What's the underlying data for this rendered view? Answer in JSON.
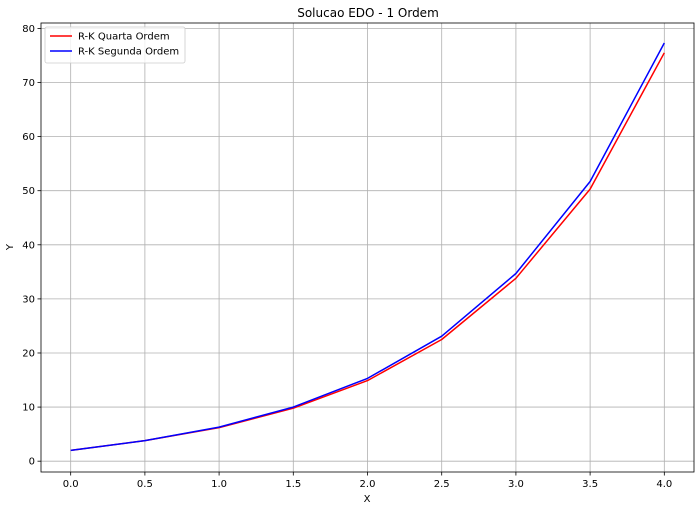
{
  "chart_data": {
    "type": "line",
    "title": "Solucao EDO - 1 Ordem",
    "xlabel": "X",
    "ylabel": "Y",
    "xlim": [
      -0.2,
      4.2
    ],
    "ylim": [
      -2,
      81
    ],
    "xticks": [
      0.0,
      0.5,
      1.0,
      1.5,
      2.0,
      2.5,
      3.0,
      3.5,
      4.0
    ],
    "xtick_labels": [
      "0.0",
      "0.5",
      "1.0",
      "1.5",
      "2.0",
      "2.5",
      "3.0",
      "3.5",
      "4.0"
    ],
    "yticks": [
      0,
      10,
      20,
      30,
      40,
      50,
      60,
      70,
      80
    ],
    "ytick_labels": [
      "0",
      "10",
      "20",
      "30",
      "40",
      "50",
      "60",
      "70",
      "80"
    ],
    "grid": true,
    "legend_position": "top-left",
    "x": [
      0.0,
      0.5,
      1.0,
      1.5,
      2.0,
      2.5,
      3.0,
      3.5,
      4.0
    ],
    "series": [
      {
        "name": "R-K Quarta Ordem",
        "color": "#ff0000",
        "values": [
          2.0,
          3.8,
          6.2,
          9.8,
          14.9,
          22.5,
          33.8,
          50.3,
          75.5
        ]
      },
      {
        "name": "R-K Segunda Ordem",
        "color": "#0000ff",
        "values": [
          2.0,
          3.8,
          6.3,
          10.0,
          15.3,
          23.1,
          34.7,
          51.7,
          77.3
        ]
      }
    ]
  }
}
